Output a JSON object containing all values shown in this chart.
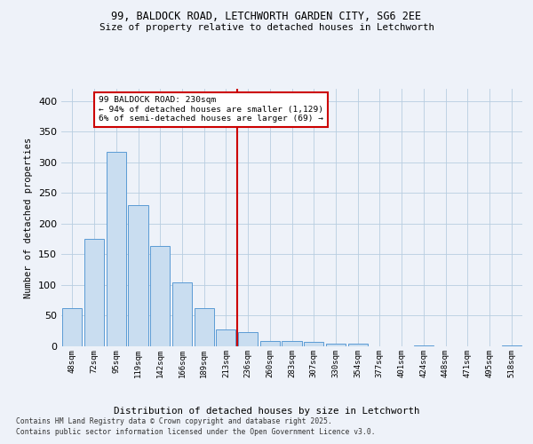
{
  "title1": "99, BALDOCK ROAD, LETCHWORTH GARDEN CITY, SG6 2EE",
  "title2": "Size of property relative to detached houses in Letchworth",
  "xlabel": "Distribution of detached houses by size in Letchworth",
  "ylabel": "Number of detached properties",
  "categories": [
    "48sqm",
    "72sqm",
    "95sqm",
    "119sqm",
    "142sqm",
    "166sqm",
    "189sqm",
    "213sqm",
    "236sqm",
    "260sqm",
    "283sqm",
    "307sqm",
    "330sqm",
    "354sqm",
    "377sqm",
    "401sqm",
    "424sqm",
    "448sqm",
    "471sqm",
    "495sqm",
    "518sqm"
  ],
  "values": [
    62,
    175,
    317,
    231,
    163,
    105,
    62,
    28,
    23,
    9,
    9,
    7,
    5,
    4,
    0,
    0,
    1,
    0,
    0,
    0,
    1
  ],
  "bar_color": "#c9ddf0",
  "bar_edge_color": "#5b9bd5",
  "vline_x": 7.5,
  "vline_color": "#cc0000",
  "annotation_title": "99 BALDOCK ROAD: 230sqm",
  "annotation_line2": "← 94% of detached houses are smaller (1,129)",
  "annotation_line3": "6% of semi-detached houses are larger (69) →",
  "annotation_box_color": "#cc0000",
  "ylim": [
    0,
    420
  ],
  "yticks": [
    0,
    50,
    100,
    150,
    200,
    250,
    300,
    350,
    400
  ],
  "footer1": "Contains HM Land Registry data © Crown copyright and database right 2025.",
  "footer2": "Contains public sector information licensed under the Open Government Licence v3.0.",
  "bg_color": "#eef2f9",
  "plot_bg_color": "#eef2f9",
  "grid_color": "#b8cde0"
}
